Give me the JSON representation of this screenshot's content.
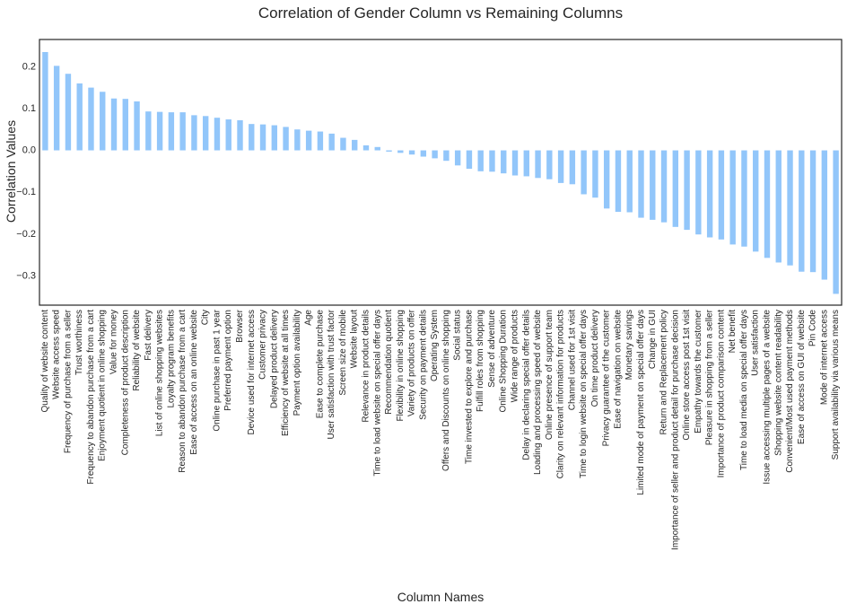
{
  "chart_data": {
    "type": "bar",
    "title": "Correlation of Gender Column vs Remaining Columns",
    "xlabel": "Column Names",
    "ylabel": "Correlation Values",
    "ylim": [
      -0.37,
      0.265
    ],
    "yticks": [
      -0.3,
      -0.2,
      -0.1,
      0.0,
      0.1,
      0.2
    ],
    "ytick_labels": [
      "−0.3",
      "−0.2",
      "−0.1",
      "0.0",
      "0.1",
      "0.2"
    ],
    "grid": false,
    "bar_color": "#92c6fa",
    "categories": [
      "Quality of website content",
      "Website access speed",
      "Frequency of purchase from a seller",
      "Trust worthiness",
      "Frequency to abandon purchase from a cart",
      "Enjoyment quotient in online shopping",
      "Value for money",
      "Completeness of product description",
      "Reliability of website",
      "Fast delivery",
      "List of online shopping websites",
      "Loyalty program benefits",
      "Reason to abandon purchase from a cart",
      "Ease of access on an online website",
      "City",
      "Online purchase in past 1 year",
      "Preferred payment option",
      "Browser",
      "Device used for internet access",
      "Customer privacy",
      "Delayed product delivery",
      "Efficiency of website at all times",
      "Payment option availability",
      "Age",
      "Ease to complete purchase",
      "User satisfaction with trust factor",
      "Screen size of mobile",
      "Website layout",
      "Relevance in product details",
      "Time to load website on special offer days",
      "Recommendation quotient",
      "Flexibility in online shopping",
      "Variety of products on offer",
      "Security on payment details",
      "Operating System",
      "Offers and Discounts on online shopping",
      "Social status",
      "Time invested to explore and purchase",
      "Fulfill roles from shopping",
      "Sense of adventure",
      "Online Shopping Duration",
      "Wide range of products",
      "Delay in declaring special offer details",
      "Loading and processing speed of website",
      "Online presence of support team",
      "Clarity on relevant information for products",
      "Channel used for 1st visit",
      "Time to login website on special offer days",
      "On time product delivery",
      "Privacy guarantee of the customer",
      "Ease of navigation on website",
      "Monetary savings",
      "Limited mode of payment on special offer days",
      "Change in GUI",
      "Return and Replacement policy",
      "Importance of seller and product detail for purchase decision",
      "Online store access post 1st visit",
      "Empathy towards the customer",
      "Pleasure in shopping from a seller",
      "Importance of product comparison content",
      "Net benefit",
      "Time to load media on special offer days",
      "User satisfaction",
      "Issue accessing multiple pages of a website",
      "Shopping website content readability",
      "Convenient/Most used payment methods",
      "Ease of access on GUI of website",
      "Pin Code",
      "Mode of internet access",
      "Support availability via various means"
    ],
    "values": [
      0.235,
      0.202,
      0.183,
      0.16,
      0.15,
      0.14,
      0.124,
      0.123,
      0.117,
      0.093,
      0.092,
      0.091,
      0.091,
      0.084,
      0.082,
      0.078,
      0.074,
      0.072,
      0.063,
      0.062,
      0.06,
      0.056,
      0.05,
      0.047,
      0.045,
      0.04,
      0.03,
      0.025,
      0.012,
      0.008,
      -0.003,
      -0.006,
      -0.01,
      -0.015,
      -0.019,
      -0.025,
      -0.036,
      -0.044,
      -0.05,
      -0.051,
      -0.055,
      -0.06,
      -0.062,
      -0.066,
      -0.069,
      -0.078,
      -0.081,
      -0.105,
      -0.113,
      -0.139,
      -0.147,
      -0.148,
      -0.161,
      -0.166,
      -0.172,
      -0.183,
      -0.19,
      -0.201,
      -0.208,
      -0.213,
      -0.225,
      -0.23,
      -0.242,
      -0.257,
      -0.268,
      -0.275,
      -0.29,
      -0.291,
      -0.309,
      -0.343
    ]
  }
}
